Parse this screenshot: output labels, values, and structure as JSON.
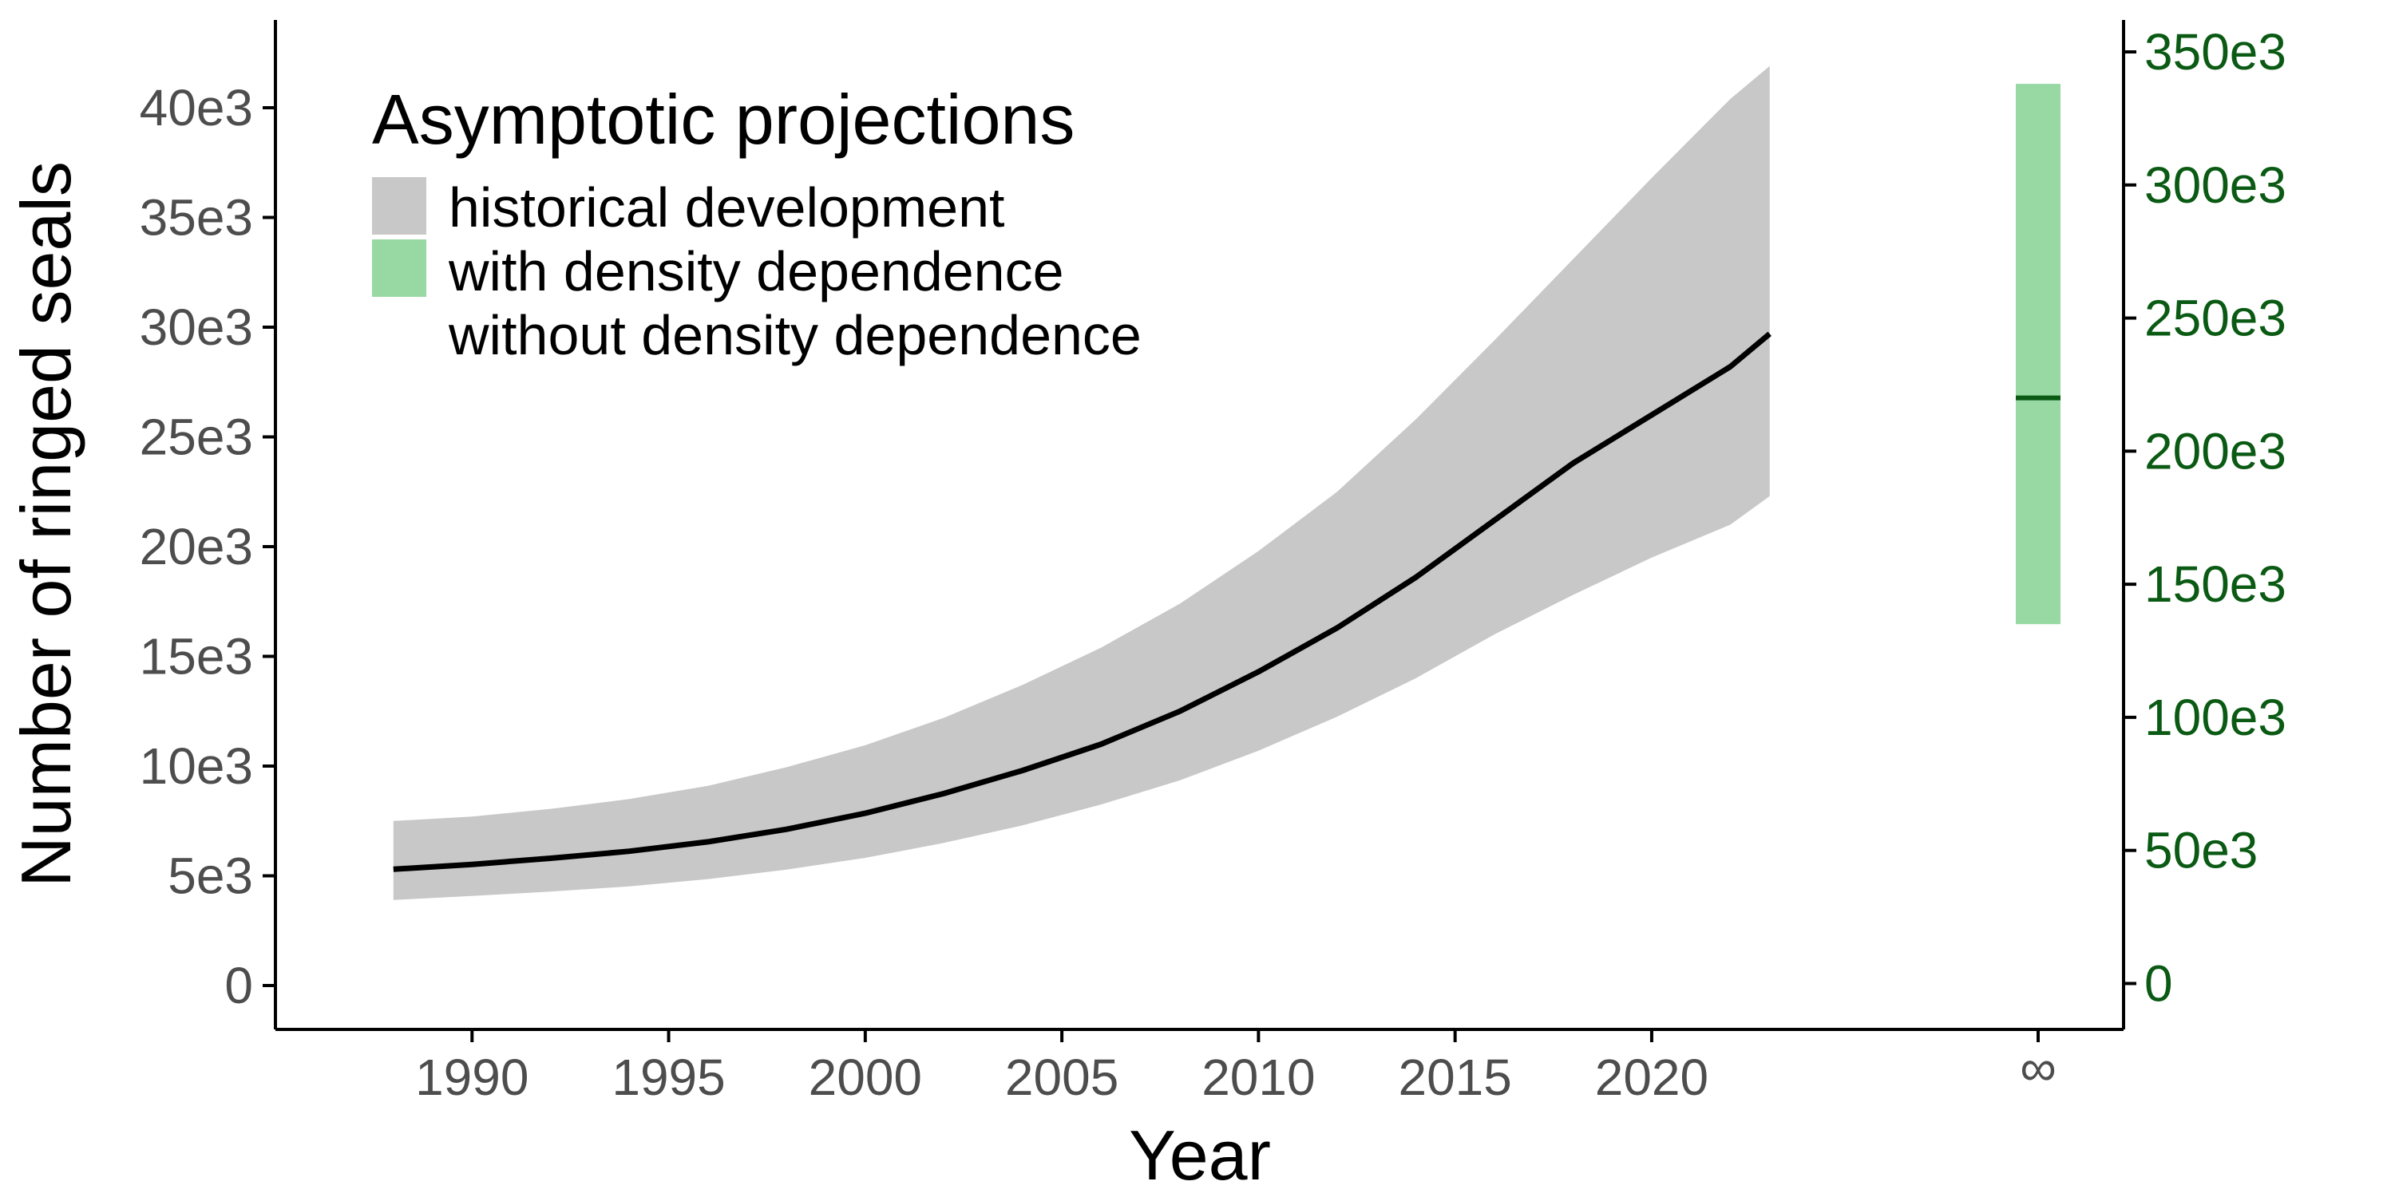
{
  "chart_data": {
    "type": "line",
    "xlabel": "Year",
    "ylabel": "Number of ringed seals",
    "xlim": [
      1985,
      2032
    ],
    "ylim_left": [
      -2000,
      44000
    ],
    "ylim_right": [
      -17250,
      362000
    ],
    "x_ticks": [
      1990,
      1995,
      2000,
      2005,
      2010,
      2015,
      2020
    ],
    "x_tick_labels": [
      "1990",
      "1995",
      "2000",
      "2005",
      "2010",
      "2015",
      "2020"
    ],
    "y_ticks_left": [
      0,
      5000,
      10000,
      15000,
      20000,
      25000,
      30000,
      35000,
      40000
    ],
    "y_tick_labels_left": [
      "0",
      "5e3",
      "10e3",
      "15e3",
      "20e3",
      "25e3",
      "30e3",
      "35e3",
      "40e3"
    ],
    "y_ticks_right": [
      0,
      50000,
      100000,
      150000,
      200000,
      250000,
      300000,
      350000
    ],
    "y_tick_labels_right": [
      "0",
      "50e3",
      "100e3",
      "150e3",
      "200e3",
      "250e3",
      "300e3",
      "350e3"
    ],
    "infinity_label": "∞",
    "legend": {
      "title": "Asymptotic projections",
      "placement": "top-left",
      "entries": [
        {
          "label": "historical development",
          "color": "#c8c8c8"
        },
        {
          "label": "with density dependence",
          "color": "#98d9a3"
        },
        {
          "label": "without density dependence",
          "color": ""
        }
      ]
    },
    "historical": {
      "x": [
        1988,
        1990,
        1992,
        1994,
        1996,
        1998,
        2000,
        2002,
        2004,
        2006,
        2008,
        2010,
        2012,
        2014,
        2016,
        2018,
        2020,
        2022,
        2023
      ],
      "y": [
        5300,
        5520,
        5800,
        6120,
        6550,
        7120,
        7850,
        8750,
        9800,
        11000,
        12500,
        14300,
        16300,
        18600,
        21200,
        23800,
        26000,
        28200,
        29700
      ],
      "lower": [
        3900,
        4080,
        4280,
        4520,
        4850,
        5280,
        5820,
        6500,
        7300,
        8250,
        9350,
        10700,
        12250,
        14000,
        16000,
        17800,
        19500,
        21000,
        22300
      ],
      "upper": [
        7500,
        7700,
        8050,
        8500,
        9100,
        9950,
        10950,
        12200,
        13700,
        15400,
        17400,
        19800,
        22500,
        25800,
        29400,
        33100,
        36800,
        40400,
        41900
      ],
      "color": "#000000",
      "band_color": "#c8c8c8"
    },
    "asymptotic": {
      "with_density_dependence": {
        "lower": 135000,
        "upper": 338000,
        "median": 220000,
        "color": "#98d9a3",
        "median_color": "#0a5a14"
      }
    }
  }
}
